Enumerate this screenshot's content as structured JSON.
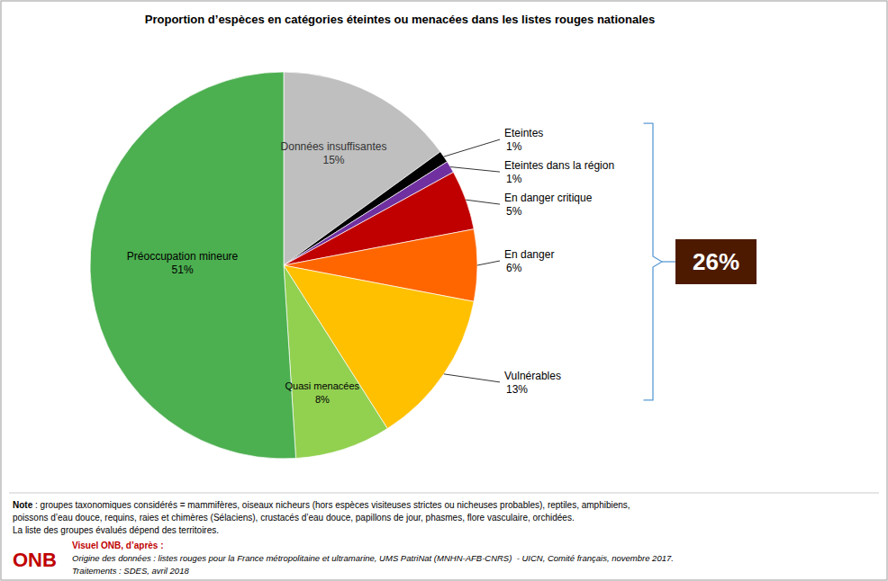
{
  "chart_data": {
    "type": "pie",
    "title": "Proportion d’espèces en catégories éteintes ou menacées dans les listes rouges nationales",
    "categories": [
      "Données insuffisantes",
      "Eteintes",
      "Eteintes dans la région",
      "En danger critique",
      "En danger",
      "Vulnérables",
      "Quasi menacées",
      "Préoccupation mineure"
    ],
    "values": [
      15,
      1,
      1,
      5,
      6,
      13,
      8,
      51
    ],
    "value_labels": [
      "15%",
      "1%",
      "1%",
      "5%",
      "6%",
      "13%",
      "8%",
      "51%"
    ],
    "colors": [
      "#BFBFBF",
      "#000000",
      "#7030A0",
      "#C00000",
      "#FF6600",
      "#FFC000",
      "#92D050",
      "#4CAF50"
    ],
    "data_labels": true,
    "annotations": [
      "26%",
      "Note",
      " : groupes taxonomiques considérés = mammifères, oiseaux nicheurs (hors espèces visiteuses strictes ou nicheuses probables), reptiles, amphibiens,\npoissons d’eau douce, requins, raies et chimères (Sélaciens), crustacés d’eau douce, papillons de jour, phasmes, flore vasculaire, orchidées.\nLa liste des groupes évalués dépend des territoires.",
      "ONB",
      "Visuel ONB, d’après :",
      "Origine des données : listes rouges pour la France métropolitaine et ultramarine, UMS PatriNat (MNHN-AFB-CNRS)  - UICN, Comité français, novembre 2017.",
      "Traitements : SDES, avril 2018"
    ]
  }
}
